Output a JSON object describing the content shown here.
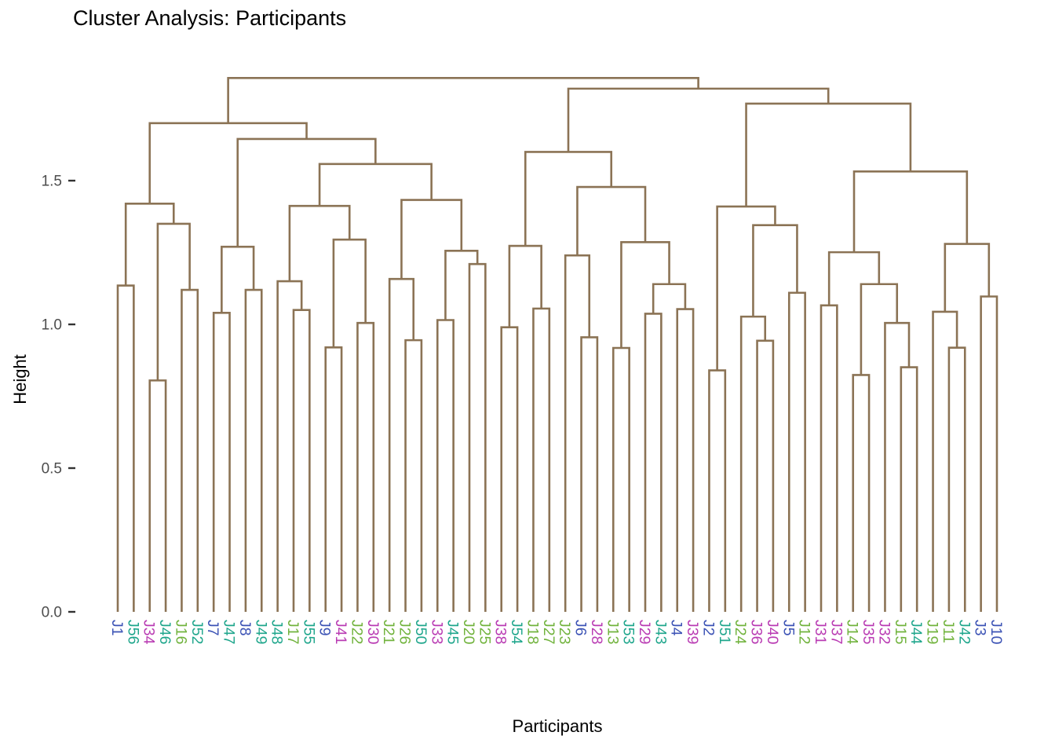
{
  "title": "Cluster Analysis: Participants",
  "chart_data": {
    "type": "dendrogram",
    "title": "Cluster Analysis: Participants",
    "xlabel": "Participants",
    "ylabel": "Height",
    "grid": false,
    "legend": "none",
    "ylim": [
      0.0,
      1.9
    ],
    "y_ticks": [
      {
        "value": 0.0,
        "label": "0.0"
      },
      {
        "value": 0.5,
        "label": "0.5"
      },
      {
        "value": 1.0,
        "label": "1.0"
      },
      {
        "value": 1.5,
        "label": "1.5"
      }
    ],
    "colors": {
      "link": "#8B7355",
      "axis_text": "#4D4D4D",
      "tick_mark": "#333333",
      "title_text": "#000000"
    },
    "label_groups": {
      "blue": "#3C53B5",
      "green": "#71B33D",
      "magenta": "#B93BB3",
      "teal": "#1FA68C"
    },
    "group_rules": [
      {
        "prefix": "J",
        "from": 1,
        "to": 10,
        "group": "blue"
      },
      {
        "prefix": "J",
        "from": 11,
        "to": 27,
        "group": "green"
      },
      {
        "prefix": "J",
        "from": 28,
        "to": 41,
        "group": "magenta"
      },
      {
        "prefix": "J",
        "from": 42,
        "to": 56,
        "group": "teal"
      }
    ],
    "leaf_order": [
      "J1",
      "J56",
      "J34",
      "J46",
      "J16",
      "J52",
      "J7",
      "J47",
      "J8",
      "J49",
      "J48",
      "J17",
      "J55",
      "J9",
      "J41",
      "J22",
      "J30",
      "J21",
      "J26",
      "J50",
      "J33",
      "J45",
      "J20",
      "J25",
      "J38",
      "J54",
      "J18",
      "J27",
      "J23",
      "J6",
      "J28",
      "J13",
      "J53",
      "J29",
      "J43",
      "J4",
      "J39",
      "J2",
      "J51",
      "J24",
      "J36",
      "J40",
      "J5",
      "J12",
      "J31",
      "J37",
      "J14",
      "J35",
      "J32",
      "J15",
      "J44",
      "J19",
      "J11",
      "J42",
      "J3",
      "J10"
    ],
    "tree": [
      1.857,
      [
        1.7,
        [
          1.42,
          [
            1.135,
            "J1",
            "J56"
          ],
          [
            1.35,
            [
              0.805,
              "J34",
              "J46"
            ],
            [
              1.12,
              "J16",
              "J52"
            ]
          ]
        ],
        [
          1.645,
          [
            1.27,
            [
              1.04,
              "J7",
              "J47"
            ],
            [
              1.12,
              "J8",
              "J49"
            ]
          ],
          [
            1.558,
            [
              1.412,
              [
                1.15,
                "J48",
                [
                  1.05,
                  "J17",
                  "J55"
                ]
              ],
              [
                1.295,
                [
                  0.92,
                  "J9",
                  "J41"
                ],
                [
                  1.005,
                  "J22",
                  "J30"
                ]
              ]
            ],
            [
              1.433,
              [
                1.158,
                "J21",
                [
                  0.945,
                  "J26",
                  "J50"
                ]
              ],
              [
                1.256,
                [
                  1.015,
                  "J33",
                  "J45"
                ],
                [
                  1.21,
                  "J20",
                  "J25"
                ]
              ]
            ]
          ]
        ]
      ],
      [
        1.82,
        [
          1.6,
          [
            1.273,
            [
              0.99,
              "J38",
              "J54"
            ],
            [
              1.055,
              "J18",
              "J27"
            ]
          ],
          [
            1.478,
            [
              1.24,
              "J23",
              [
                0.955,
                "J6",
                "J28"
              ]
            ],
            [
              1.286,
              [
                0.918,
                "J13",
                "J53"
              ],
              [
                1.14,
                [
                  1.037,
                  "J29",
                  "J43"
                ],
                [
                  1.053,
                  "J4",
                  "J39"
                ]
              ]
            ]
          ]
        ],
        [
          1.768,
          [
            1.41,
            [
              0.84,
              "J2",
              "J51"
            ],
            [
              1.345,
              [
                1.027,
                "J24",
                [
                  0.943,
                  "J36",
                  "J40"
                ]
              ],
              [
                1.11,
                "J5",
                "J12"
              ]
            ]
          ],
          [
            1.532,
            [
              1.251,
              [
                1.066,
                "J31",
                "J37"
              ],
              [
                1.14,
                [
                  0.824,
                  "J14",
                  "J35"
                ],
                [
                  1.005,
                  "J32",
                  [
                    0.851,
                    "J15",
                    "J44"
                  ]
                ]
              ]
            ],
            [
              1.28,
              [
                1.044,
                "J19",
                [
                  0.919,
                  "J11",
                  "J42"
                ]
              ],
              [
                1.097,
                "J3",
                "J10"
              ]
            ]
          ]
        ]
      ]
    ]
  }
}
